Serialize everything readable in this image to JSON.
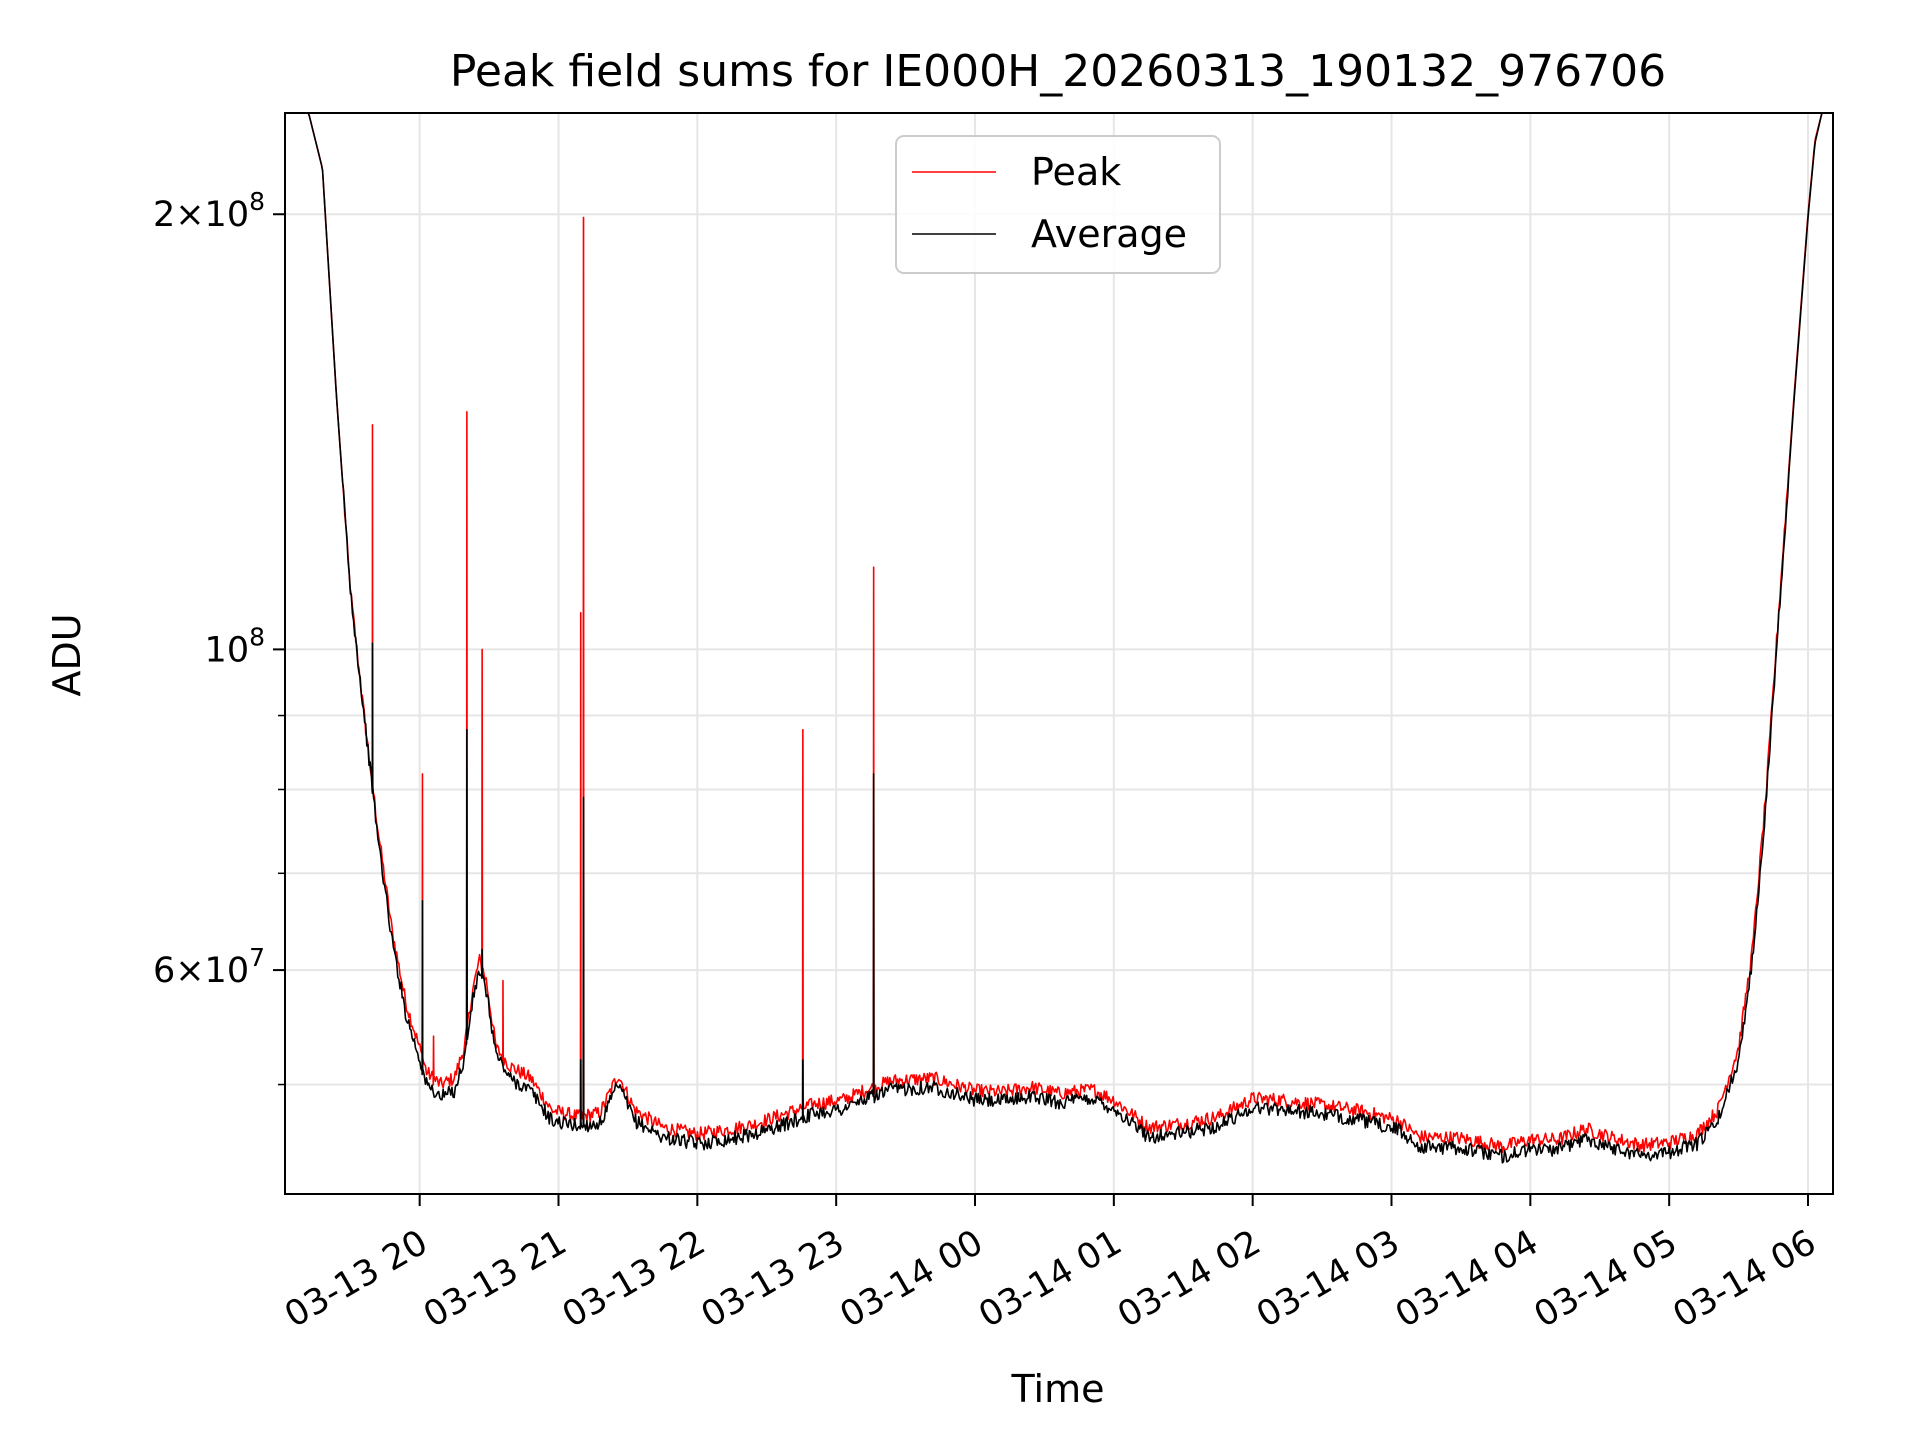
{
  "chart_data": {
    "type": "line",
    "title": "Peak field sums for IE000H_20260313_190132_976706",
    "xlabel": "Time",
    "ylabel": "ADU",
    "yscale": "log",
    "ylim": [
      42000000,
      235000000
    ],
    "xlim_hours": [
      19.03,
      30.18
    ],
    "grid": true,
    "legend_position": "top-center",
    "x_ticks": [
      {
        "hour": 20,
        "label": "03-13 20"
      },
      {
        "hour": 21,
        "label": "03-13 21"
      },
      {
        "hour": 22,
        "label": "03-13 22"
      },
      {
        "hour": 23,
        "label": "03-13 23"
      },
      {
        "hour": 24,
        "label": "03-14 00"
      },
      {
        "hour": 25,
        "label": "03-14 01"
      },
      {
        "hour": 26,
        "label": "03-14 02"
      },
      {
        "hour": 27,
        "label": "03-14 03"
      },
      {
        "hour": 28,
        "label": "03-14 04"
      },
      {
        "hour": 29,
        "label": "03-14 05"
      },
      {
        "hour": 30,
        "label": "03-14 06"
      }
    ],
    "y_major_ticks": [
      {
        "value": 60000000,
        "mantissa": "6",
        "exponent": "7"
      },
      {
        "value": 100000000,
        "mantissa": "",
        "exponent": "8"
      },
      {
        "value": 200000000,
        "mantissa": "2",
        "exponent": "8"
      }
    ],
    "y_minor_gridlines": [
      50000000,
      70000000,
      80000000,
      90000000
    ],
    "series": [
      {
        "name": "Peak",
        "color": "#ff0000",
        "points": [
          [
            19.03,
            235000000
          ],
          [
            19.2,
            235000000
          ],
          [
            19.3,
            215000000
          ],
          [
            19.4,
            150000000
          ],
          [
            19.5,
            110000000
          ],
          [
            19.6,
            90000000
          ],
          [
            19.7,
            75000000
          ],
          [
            19.8,
            64000000
          ],
          [
            19.9,
            57000000
          ],
          [
            20.0,
            53000000
          ],
          [
            20.05,
            51000000
          ],
          [
            20.15,
            50000000
          ],
          [
            20.25,
            50500000
          ],
          [
            20.32,
            53000000
          ],
          [
            20.38,
            58000000
          ],
          [
            20.43,
            61000000
          ],
          [
            20.48,
            59000000
          ],
          [
            20.55,
            53000000
          ],
          [
            20.65,
            51500000
          ],
          [
            20.8,
            50500000
          ],
          [
            20.95,
            48000000
          ],
          [
            21.15,
            47500000
          ],
          [
            21.3,
            47800000
          ],
          [
            21.43,
            50800000
          ],
          [
            21.55,
            48000000
          ],
          [
            21.75,
            46700000
          ],
          [
            22.0,
            46200000
          ],
          [
            22.2,
            46500000
          ],
          [
            22.4,
            46900000
          ],
          [
            22.65,
            47800000
          ],
          [
            22.85,
            48500000
          ],
          [
            23.05,
            48800000
          ],
          [
            23.2,
            49500000
          ],
          [
            23.4,
            50300000
          ],
          [
            23.7,
            50500000
          ],
          [
            24.0,
            49500000
          ],
          [
            24.2,
            49400000
          ],
          [
            24.4,
            49800000
          ],
          [
            24.6,
            49300000
          ],
          [
            24.85,
            49600000
          ],
          [
            25.0,
            48800000
          ],
          [
            25.25,
            46700000
          ],
          [
            25.5,
            47000000
          ],
          [
            25.75,
            47500000
          ],
          [
            26.0,
            48900000
          ],
          [
            26.2,
            48800000
          ],
          [
            26.5,
            48400000
          ],
          [
            26.8,
            47900000
          ],
          [
            27.05,
            47200000
          ],
          [
            27.2,
            46000000
          ],
          [
            27.5,
            45900000
          ],
          [
            27.8,
            45300000
          ],
          [
            28.0,
            45800000
          ],
          [
            28.2,
            45800000
          ],
          [
            28.4,
            46600000
          ],
          [
            28.6,
            45900000
          ],
          [
            28.8,
            45400000
          ],
          [
            29.0,
            45600000
          ],
          [
            29.2,
            46200000
          ],
          [
            29.35,
            48000000
          ],
          [
            29.5,
            53000000
          ],
          [
            29.6,
            62000000
          ],
          [
            29.7,
            80000000
          ],
          [
            29.8,
            110000000
          ],
          [
            29.9,
            150000000
          ],
          [
            30.0,
            200000000
          ],
          [
            30.05,
            225000000
          ],
          [
            30.1,
            235000000
          ],
          [
            30.18,
            235000000
          ]
        ],
        "spikes": [
          {
            "hour": 19.66,
            "value": 143000000
          },
          {
            "hour": 20.02,
            "value": 82000000
          },
          {
            "hour": 20.1,
            "value": 54000000
          },
          {
            "hour": 20.34,
            "value": 146000000
          },
          {
            "hour": 20.45,
            "value": 100000000
          },
          {
            "hour": 20.6,
            "value": 59000000
          },
          {
            "hour": 21.16,
            "value": 106000000
          },
          {
            "hour": 21.18,
            "value": 199000000
          },
          {
            "hour": 22.76,
            "value": 88000000
          },
          {
            "hour": 23.27,
            "value": 114000000
          }
        ]
      },
      {
        "name": "Average",
        "color": "#000000",
        "points": [
          [
            19.03,
            235000000
          ],
          [
            19.2,
            235000000
          ],
          [
            19.3,
            215000000
          ],
          [
            19.4,
            150000000
          ],
          [
            19.5,
            110000000
          ],
          [
            19.6,
            90000000
          ],
          [
            19.7,
            74000000
          ],
          [
            19.8,
            63000000
          ],
          [
            19.9,
            56000000
          ],
          [
            20.0,
            52000000
          ],
          [
            20.05,
            50000000
          ],
          [
            20.15,
            49000000
          ],
          [
            20.25,
            49500000
          ],
          [
            20.32,
            52000000
          ],
          [
            20.38,
            57000000
          ],
          [
            20.43,
            60000000
          ],
          [
            20.48,
            58000000
          ],
          [
            20.55,
            52500000
          ],
          [
            20.65,
            50500000
          ],
          [
            20.8,
            49500000
          ],
          [
            20.95,
            47200000
          ],
          [
            21.15,
            46800000
          ],
          [
            21.3,
            47000000
          ],
          [
            21.43,
            50000000
          ],
          [
            21.55,
            47200000
          ],
          [
            21.75,
            46000000
          ],
          [
            22.0,
            45500000
          ],
          [
            22.2,
            45800000
          ],
          [
            22.4,
            46200000
          ],
          [
            22.65,
            47000000
          ],
          [
            22.85,
            47800000
          ],
          [
            23.05,
            48100000
          ],
          [
            23.2,
            48800000
          ],
          [
            23.4,
            49600000
          ],
          [
            23.7,
            49800000
          ],
          [
            24.0,
            48800000
          ],
          [
            24.2,
            48700000
          ],
          [
            24.4,
            49100000
          ],
          [
            24.6,
            48600000
          ],
          [
            24.85,
            48900000
          ],
          [
            25.0,
            48100000
          ],
          [
            25.25,
            46000000
          ],
          [
            25.5,
            46300000
          ],
          [
            25.75,
            46800000
          ],
          [
            26.0,
            48200000
          ],
          [
            26.2,
            48100000
          ],
          [
            26.5,
            47700000
          ],
          [
            26.8,
            47200000
          ],
          [
            27.05,
            46500000
          ],
          [
            27.2,
            45300000
          ],
          [
            27.5,
            45200000
          ],
          [
            27.8,
            44600000
          ],
          [
            28.0,
            45100000
          ],
          [
            28.2,
            45100000
          ],
          [
            28.4,
            45900000
          ],
          [
            28.6,
            45200000
          ],
          [
            28.8,
            44700000
          ],
          [
            29.0,
            44900000
          ],
          [
            29.2,
            45500000
          ],
          [
            29.35,
            47200000
          ],
          [
            29.5,
            52000000
          ],
          [
            29.6,
            61000000
          ],
          [
            29.7,
            79000000
          ],
          [
            29.8,
            109000000
          ],
          [
            29.9,
            149000000
          ],
          [
            30.0,
            199000000
          ],
          [
            30.05,
            224000000
          ],
          [
            30.1,
            235000000
          ],
          [
            30.18,
            235000000
          ]
        ],
        "spikes": [
          {
            "hour": 19.66,
            "value": 101000000
          },
          {
            "hour": 20.02,
            "value": 67000000
          },
          {
            "hour": 20.34,
            "value": 88000000
          },
          {
            "hour": 20.45,
            "value": 62000000
          },
          {
            "hour": 21.18,
            "value": 79000000
          },
          {
            "hour": 21.16,
            "value": 52000000
          },
          {
            "hour": 22.76,
            "value": 52000000
          },
          {
            "hour": 23.27,
            "value": 82000000
          }
        ]
      }
    ]
  }
}
